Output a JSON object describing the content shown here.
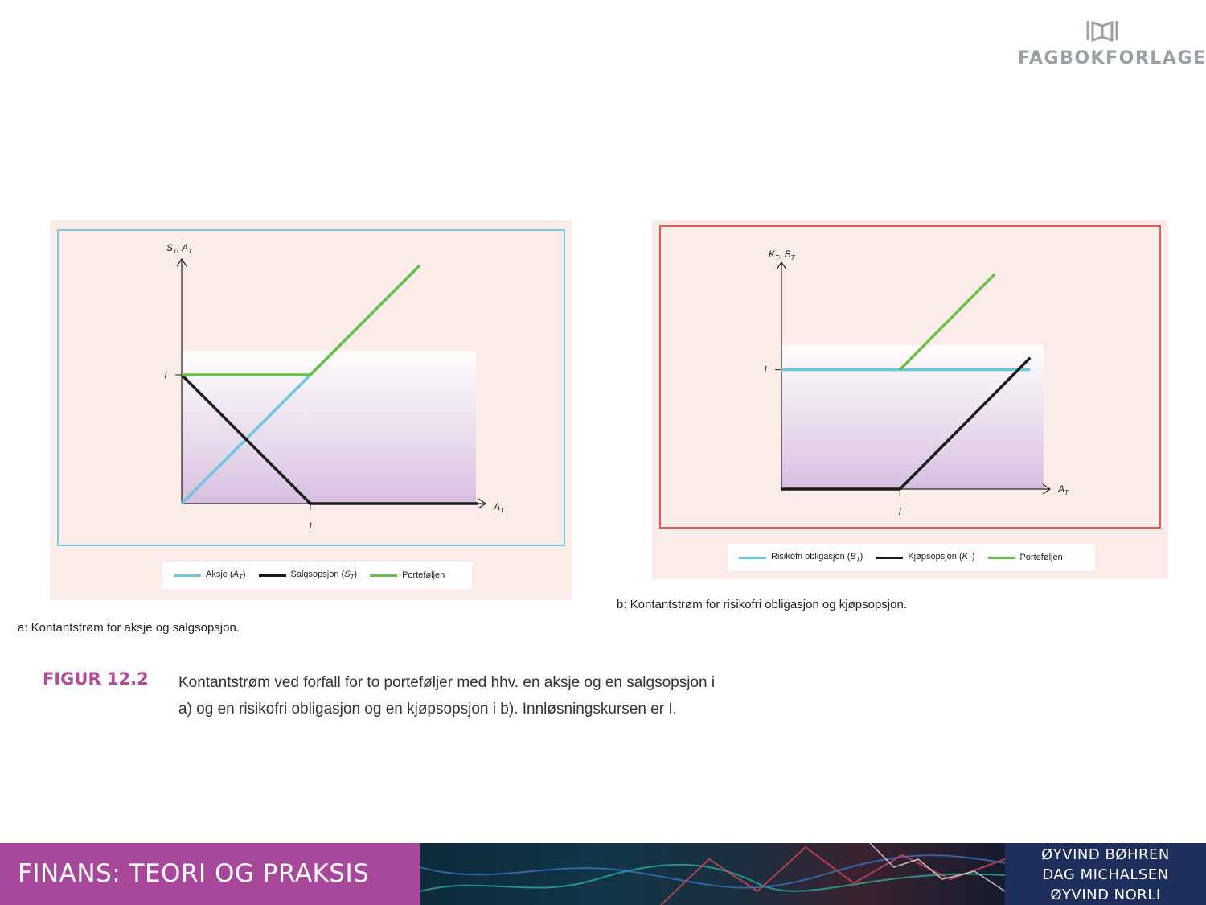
{
  "publisher": {
    "name": "FAGBOKFORLAGET",
    "icon": "open-book-logo-icon",
    "color": "#9aa0a6"
  },
  "figure": {
    "label": "FIGUR 12.2",
    "text": "Kontantstrøm ved forfall for to porteføljer med hhv. en aksje og en salgsopsjon i a) og en risikofri obligasjon og en kjøpsopsjon i b). Innløsningskursen er I."
  },
  "footer": {
    "title": "FINANS: TEORI OG PRAKSIS",
    "authors": [
      "ØYVIND BØHREN",
      "DAG MICHALSEN",
      "ØYVIND NORLI"
    ],
    "colors": {
      "title_bg": "#a7479a",
      "authors_bg": "#1e2f5e"
    }
  },
  "colors": {
    "cyan": "#6cc7dc",
    "black": "#1a1a1a",
    "green": "#6abf4b",
    "frame_a": "#7ecbe0",
    "frame_b": "#e05a5a",
    "panel_bg": "#fcece9",
    "fill": "#d6bfdf"
  },
  "chart_data": [
    {
      "type": "line",
      "id": "a",
      "caption": "a: Kontantstrøm for aksje og salgsopsjon.",
      "ylabel": "S_T, A_T",
      "ylabel_display": "S_T, A_T",
      "xlabel": "A_T",
      "x_tick": "I",
      "y_tick": "I",
      "xlim": [
        0,
        2.3
      ],
      "ylim": [
        0,
        1.9
      ],
      "strike": 1,
      "legend_position": "bottom",
      "series": [
        {
          "name": "Aksje (A_T)",
          "name_parts": [
            "Aksje (",
            "A",
            "T",
            ")"
          ],
          "color": "#6cc7dc",
          "points": [
            [
              0,
              0
            ],
            [
              1,
              1
            ],
            [
              1.85,
              1.85
            ]
          ]
        },
        {
          "name": "Salgsopsjon (S_T)",
          "name_parts": [
            "Salgsopsjon (",
            "S",
            "T",
            ")"
          ],
          "color": "#1a1a1a",
          "points": [
            [
              0,
              1
            ],
            [
              1,
              0
            ],
            [
              2.3,
              0
            ]
          ]
        },
        {
          "name": "Porteføljen",
          "name_parts": [
            "Porteføljen",
            "",
            "",
            ""
          ],
          "color": "#6abf4b",
          "points": [
            [
              0,
              1
            ],
            [
              1,
              1
            ],
            [
              1.85,
              1.85
            ]
          ]
        }
      ]
    },
    {
      "type": "line",
      "id": "b",
      "caption": "b: Kontantstrøm for risikofri obligasjon og kjøpsopsjon.",
      "ylabel": "K_T, B_T",
      "xlabel": "A_T",
      "x_tick": "I",
      "y_tick": "I",
      "xlim": [
        0,
        2.2
      ],
      "ylim": [
        0,
        1.9
      ],
      "strike": 1,
      "legend_position": "bottom",
      "series": [
        {
          "name": "Risikofri obligasjon (B_T)",
          "name_parts": [
            "Risikofri obligasjon (",
            "B",
            "T",
            ")"
          ],
          "color": "#6cc7dc",
          "points": [
            [
              0,
              1
            ],
            [
              2.1,
              1
            ]
          ]
        },
        {
          "name": "Kjøpsopsjon (K_T)",
          "name_parts": [
            "Kjøpsopsjon (",
            "K",
            "T",
            ")"
          ],
          "color": "#1a1a1a",
          "points": [
            [
              0,
              0
            ],
            [
              1,
              0
            ],
            [
              2.1,
              1.1
            ]
          ]
        },
        {
          "name": "Porteføljen",
          "name_parts": [
            "Porteføljen",
            "",
            "",
            ""
          ],
          "color": "#6abf4b",
          "points": [
            [
              1,
              1
            ],
            [
              1.8,
              1.8
            ]
          ]
        }
      ]
    }
  ]
}
